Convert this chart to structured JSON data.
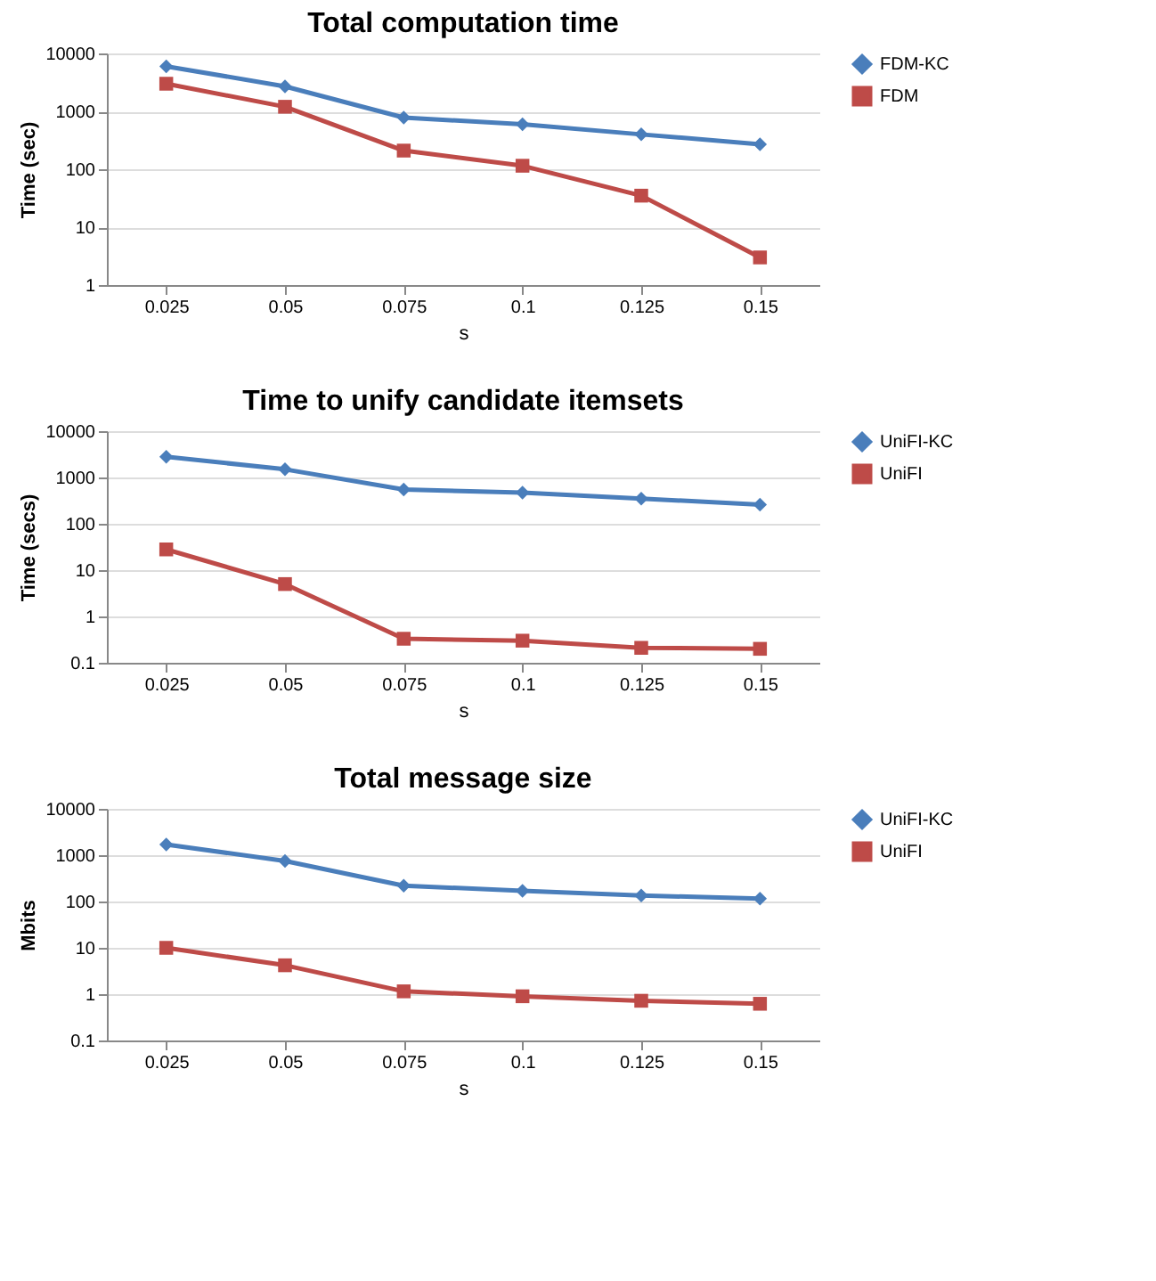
{
  "chart_data": [
    {
      "type": "line",
      "title": "Total computation time",
      "xlabel": "s",
      "ylabel": "Time (sec)",
      "categories": [
        "0.025",
        "0.05",
        "0.075",
        "0.1",
        "0.125",
        "0.15"
      ],
      "log": "y",
      "ylim": [
        1,
        10000
      ],
      "yticks": [
        1,
        10,
        100,
        1000,
        10000
      ],
      "grid": "y",
      "legend": "right",
      "series": [
        {
          "name": "FDM-KC",
          "color": "#4a7ebb",
          "marker": "diamond",
          "values": [
            6000,
            2700,
            780,
            600,
            400,
            270
          ]
        },
        {
          "name": "FDM",
          "color": "#be4b48",
          "marker": "square",
          "values": [
            3000,
            1200,
            210,
            115,
            35,
            3
          ]
        }
      ]
    },
    {
      "type": "line",
      "title": "Time to unify candidate itemsets",
      "xlabel": "s",
      "ylabel": "Time (secs)",
      "categories": [
        "0.025",
        "0.05",
        "0.075",
        "0.1",
        "0.125",
        "0.15"
      ],
      "log": "y",
      "ylim": [
        0.1,
        10000
      ],
      "yticks": [
        0.1,
        1,
        10,
        100,
        1000,
        10000
      ],
      "grid": "y",
      "legend": "right",
      "series": [
        {
          "name": "UniFI-KC",
          "color": "#4a7ebb",
          "marker": "diamond",
          "values": [
            2800,
            1500,
            550,
            470,
            350,
            260
          ]
        },
        {
          "name": "UniFI",
          "color": "#be4b48",
          "marker": "square",
          "values": [
            28,
            5,
            0.33,
            0.3,
            0.21,
            0.2
          ]
        }
      ]
    },
    {
      "type": "line",
      "title": "Total message size",
      "xlabel": "s",
      "ylabel": "Mbits",
      "categories": [
        "0.025",
        "0.05",
        "0.075",
        "0.1",
        "0.125",
        "0.15"
      ],
      "log": "y",
      "ylim": [
        0.1,
        10000
      ],
      "yticks": [
        0.1,
        1,
        10,
        100,
        1000,
        10000
      ],
      "grid": "y",
      "legend": "right",
      "series": [
        {
          "name": "UniFI-KC",
          "color": "#4a7ebb",
          "marker": "diamond",
          "values": [
            1700,
            750,
            220,
            170,
            135,
            115
          ]
        },
        {
          "name": "UniFI",
          "color": "#be4b48",
          "marker": "square",
          "values": [
            10,
            4.2,
            1.15,
            0.9,
            0.72,
            0.62
          ]
        }
      ]
    }
  ]
}
